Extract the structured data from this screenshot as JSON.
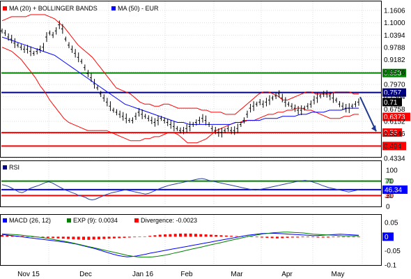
{
  "legend": {
    "main": [
      "MA (20) + BOLLINGER BANDS",
      "MA (50) - EUR"
    ],
    "rsi": "RSI",
    "macd": [
      "MACD (26, 12)",
      "EXP (9): 0.0034",
      "Divergence: -0.0023"
    ]
  },
  "colors": {
    "price": "#000000",
    "bands": "#ff0000",
    "ma50": "#0000ff",
    "resistance": "#008000",
    "support": "#ff0000",
    "pivot": "#000080",
    "rsi": "#2b3fa0",
    "divergence": "#ff0000"
  },
  "chart_data": [
    {
      "type": "line",
      "name": "price",
      "ylim": [
        0.4334,
        1.1606
      ],
      "ytick_labels": [
        "1.1606",
        "1.1000",
        "1.0394",
        "0.9788",
        "0.9182",
        "0.8576",
        "0.7970",
        "0.7364",
        "0.6758",
        "0.6152",
        "0.5546",
        "0.494",
        "0.4334"
      ],
      "xtick_labels": [
        "Nov 15",
        "Dec",
        "Jan 16",
        "Feb",
        "Mar",
        "Apr",
        "May"
      ],
      "series": [
        {
          "name": "MA (20) + BOLLINGER BANDS",
          "kind": "bands"
        },
        {
          "name": "MA (50) - EUR",
          "kind": "ma"
        }
      ],
      "price": [
        1.06,
        1.05,
        1.03,
        1.02,
        1.0,
        0.99,
        0.98,
        0.97,
        0.97,
        0.96,
        0.95,
        0.96,
        0.97,
        0.98,
        1.03,
        1.05,
        1.04,
        1.06,
        1.09,
        1.07,
        1.02,
        0.99,
        0.97,
        0.95,
        0.93,
        0.91,
        0.88,
        0.85,
        0.83,
        0.8,
        0.78,
        0.75,
        0.73,
        0.71,
        0.69,
        0.67,
        0.66,
        0.65,
        0.64,
        0.63,
        0.62,
        0.62,
        0.64,
        0.66,
        0.65,
        0.64,
        0.63,
        0.62,
        0.61,
        0.62,
        0.63,
        0.62,
        0.61,
        0.6,
        0.59,
        0.58,
        0.57,
        0.57,
        0.58,
        0.59,
        0.6,
        0.61,
        0.62,
        0.63,
        0.62,
        0.6,
        0.58,
        0.57,
        0.56,
        0.56,
        0.57,
        0.58,
        0.57,
        0.57,
        0.58,
        0.6,
        0.62,
        0.65,
        0.68,
        0.69,
        0.7,
        0.71,
        0.7,
        0.71,
        0.72,
        0.73,
        0.74,
        0.75,
        0.73,
        0.71,
        0.7,
        0.69,
        0.68,
        0.67,
        0.67,
        0.68,
        0.69,
        0.7,
        0.72,
        0.73,
        0.74,
        0.75,
        0.75,
        0.74,
        0.73,
        0.72,
        0.7,
        0.69,
        0.68,
        0.68,
        0.69,
        0.7,
        0.71
      ],
      "bb_upper": [
        1.11,
        1.12,
        1.13,
        1.13,
        1.13,
        1.13,
        1.14,
        1.14,
        1.14,
        1.14,
        1.13,
        1.12,
        1.1,
        1.08,
        1.05,
        1.02,
        0.99,
        0.97,
        0.95,
        0.93,
        0.9,
        0.87,
        0.84,
        0.81,
        0.78,
        0.77,
        0.76,
        0.75,
        0.73,
        0.71,
        0.7,
        0.7,
        0.69,
        0.69,
        0.7,
        0.7,
        0.69,
        0.68,
        0.68,
        0.68,
        0.68,
        0.68,
        0.67,
        0.67,
        0.66,
        0.66,
        0.66,
        0.65,
        0.65,
        0.65,
        0.67,
        0.69,
        0.71,
        0.73,
        0.75,
        0.76,
        0.76,
        0.75,
        0.74,
        0.72,
        0.72,
        0.73,
        0.74,
        0.75,
        0.76,
        0.76,
        0.75,
        0.75,
        0.75,
        0.75,
        0.76,
        0.76,
        0.76,
        0.76,
        0.75,
        0.75
      ],
      "bb_lower": [
        0.98,
        0.97,
        0.96,
        0.94,
        0.92,
        0.89,
        0.86,
        0.83,
        0.79,
        0.76,
        0.72,
        0.69,
        0.66,
        0.63,
        0.61,
        0.6,
        0.59,
        0.58,
        0.57,
        0.57,
        0.57,
        0.57,
        0.57,
        0.56,
        0.55,
        0.54,
        0.53,
        0.52,
        0.52,
        0.52,
        0.53,
        0.53,
        0.54,
        0.54,
        0.55,
        0.56,
        0.56,
        0.55,
        0.53,
        0.51,
        0.51,
        0.51,
        0.52,
        0.53,
        0.55,
        0.57,
        0.58,
        0.59,
        0.6,
        0.61,
        0.61,
        0.62,
        0.62,
        0.62,
        0.63,
        0.64,
        0.65,
        0.65,
        0.66,
        0.66,
        0.67,
        0.67,
        0.68,
        0.68,
        0.67,
        0.67,
        0.66,
        0.65,
        0.64,
        0.63,
        0.63,
        0.63,
        0.64,
        0.64,
        0.65,
        0.65
      ],
      "ma50": [
        1.03,
        1.02,
        1.01,
        1.0,
        0.99,
        0.98,
        0.97,
        0.96,
        0.95,
        0.94,
        0.92,
        0.9,
        0.88,
        0.86,
        0.84,
        0.82,
        0.8,
        0.78,
        0.76,
        0.74,
        0.72,
        0.7,
        0.69,
        0.68,
        0.67,
        0.66,
        0.65,
        0.64,
        0.63,
        0.62,
        0.61,
        0.61,
        0.6,
        0.6,
        0.6,
        0.6,
        0.6,
        0.6,
        0.6,
        0.6,
        0.61,
        0.61,
        0.62,
        0.62,
        0.62,
        0.63,
        0.63,
        0.63,
        0.64,
        0.64,
        0.64,
        0.65,
        0.65,
        0.66,
        0.66,
        0.66,
        0.67,
        0.67,
        0.67,
        0.68,
        0.68,
        0.68
      ],
      "levels": [
        {
          "label": "0.853",
          "value": 0.853,
          "role": "resistance"
        },
        {
          "label": "0.757",
          "value": 0.757,
          "role": "pivot"
        },
        {
          "label": "0.71",
          "value": 0.71,
          "role": "last"
        },
        {
          "label": "0.6373",
          "value": 0.6373,
          "role": "last-ma"
        },
        {
          "label": "0.56",
          "value": 0.56,
          "role": "support"
        },
        {
          "label": "0.494",
          "value": 0.494,
          "role": "support"
        }
      ],
      "forecast_arrow": {
        "from": 0.735,
        "to": 0.566
      }
    },
    {
      "type": "line",
      "name": "RSI",
      "ylim": [
        0,
        100
      ],
      "ytick_labels": [
        "100",
        "70",
        "30",
        "0"
      ],
      "values": [
        60,
        58,
        55,
        50,
        45,
        40,
        38,
        42,
        48,
        52,
        55,
        58,
        62,
        66,
        68,
        65,
        60,
        55,
        50,
        45,
        42,
        38,
        35,
        30,
        28,
        25,
        20,
        18,
        20,
        24,
        28,
        32,
        35,
        38,
        40,
        42,
        44,
        46,
        44,
        42,
        40,
        38,
        36,
        34,
        36,
        40,
        44,
        48,
        52,
        55,
        58,
        60,
        62,
        64,
        66,
        68,
        70,
        72,
        74,
        76,
        77,
        75,
        72,
        70,
        68,
        66,
        64,
        62,
        60,
        58,
        56,
        54,
        52,
        50,
        48,
        46,
        45,
        46,
        48,
        50,
        52,
        54,
        56,
        58,
        60,
        62,
        64,
        66,
        68,
        70,
        71,
        72,
        70,
        68,
        65,
        62,
        58,
        55,
        52,
        50,
        48,
        46,
        44,
        42,
        40,
        42,
        44,
        46
      ],
      "level_labels": [
        "70",
        "46.34",
        "30"
      ],
      "levels": [
        70,
        46.34,
        30
      ]
    },
    {
      "type": "line",
      "name": "MACD",
      "ylim": [
        -0.1,
        0.05
      ],
      "ytick_labels": [
        "0.05",
        "0",
        "-0.05",
        "-0.1"
      ],
      "highlight_label": "0",
      "macd": [
        0.008,
        0.006,
        0.004,
        0.002,
        0.0,
        -0.002,
        -0.004,
        -0.006,
        -0.008,
        -0.01,
        -0.012,
        -0.014,
        -0.016,
        -0.018,
        -0.02,
        -0.023,
        -0.026,
        -0.03,
        -0.034,
        -0.038,
        -0.042,
        -0.047,
        -0.052,
        -0.057,
        -0.062,
        -0.066,
        -0.069,
        -0.071,
        -0.07,
        -0.068,
        -0.065,
        -0.062,
        -0.058,
        -0.055,
        -0.052,
        -0.049,
        -0.046,
        -0.043,
        -0.04,
        -0.037,
        -0.034,
        -0.031,
        -0.028,
        -0.025,
        -0.022,
        -0.019,
        -0.016,
        -0.013,
        -0.01,
        -0.007,
        -0.004,
        -0.001,
        0.002,
        0.005,
        0.007,
        0.009,
        0.011,
        0.012,
        0.012,
        0.012,
        0.011,
        0.01,
        0.009,
        0.008,
        0.007,
        0.006,
        0.005,
        0.004,
        0.004,
        0.005,
        0.006,
        0.007,
        0.008,
        0.009,
        0.008,
        0.007,
        0.006,
        0.005
      ],
      "signal": [
        0.01,
        0.009,
        0.008,
        0.007,
        0.005,
        0.003,
        0.001,
        -0.001,
        -0.003,
        -0.006,
        -0.009,
        -0.012,
        -0.015,
        -0.018,
        -0.022,
        -0.026,
        -0.03,
        -0.034,
        -0.038,
        -0.042,
        -0.046,
        -0.05,
        -0.054,
        -0.058,
        -0.062,
        -0.066,
        -0.069,
        -0.071,
        -0.072,
        -0.072,
        -0.071,
        -0.069,
        -0.066,
        -0.063,
        -0.059,
        -0.055,
        -0.051,
        -0.047,
        -0.043,
        -0.039,
        -0.035,
        -0.031,
        -0.027,
        -0.023,
        -0.019,
        -0.015,
        -0.011,
        -0.007,
        -0.003,
        0.001,
        0.004,
        0.007,
        0.01,
        0.012,
        0.014,
        0.015,
        0.016,
        0.016,
        0.015,
        0.014,
        0.013,
        0.011,
        0.009,
        0.008,
        0.007,
        0.006,
        0.005,
        0.004,
        0.003,
        0.003,
        0.003,
        0.003
      ],
      "divergence": [
        0.006,
        0.005,
        0.004,
        0.003,
        0.002,
        0.001,
        0.0,
        -0.002,
        -0.003,
        -0.004,
        -0.005,
        -0.006,
        -0.007,
        -0.008,
        -0.009,
        -0.01,
        -0.011,
        -0.011,
        -0.01,
        -0.009,
        -0.008,
        -0.007,
        -0.006,
        -0.005,
        -0.004,
        -0.003,
        -0.002,
        -0.001,
        0.001,
        0.003,
        0.005,
        0.007,
        0.008,
        0.009,
        0.01,
        0.011,
        0.011,
        0.011,
        0.01,
        0.009,
        0.008,
        0.007,
        0.006,
        0.005,
        0.004,
        0.003,
        0.002,
        0.001,
        0.0,
        -0.001,
        -0.002,
        -0.003,
        -0.004,
        -0.005,
        -0.006,
        -0.005,
        -0.004,
        -0.003,
        -0.003,
        -0.002,
        -0.002,
        -0.002,
        -0.003,
        -0.003,
        -0.003,
        -0.002,
        -0.002,
        -0.002,
        -0.002,
        -0.002,
        -0.002
      ]
    }
  ]
}
